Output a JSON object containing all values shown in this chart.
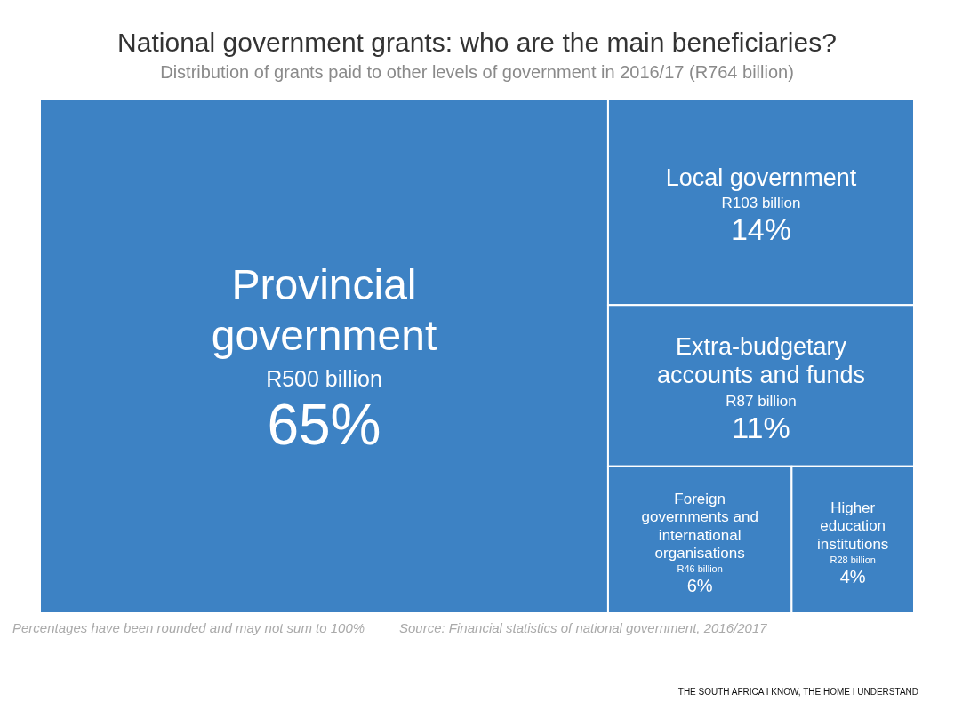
{
  "chart_data": {
    "type": "other",
    "title": "National government grants: who are the main beneficiaries?",
    "subtitle": "Distribution of grants paid to other levels of government in 2016/17 (R764 billion)",
    "categories": [
      "Provincial government",
      "Local government",
      "Extra-budgetary accounts and funds",
      "Foreign governments and international organisations",
      "Higher education institutions"
    ],
    "values": [
      65,
      14,
      11,
      6,
      4
    ],
    "value_labels": [
      "65%",
      "14%",
      "11%",
      "6%",
      "4%"
    ],
    "color": "#3d82c4",
    "annotations": [
      {
        "text": "R500 billion",
        "x": "Provincial government"
      },
      {
        "text": "R103 billion",
        "x": "Local government"
      },
      {
        "text": "R87 billion",
        "x": "Extra-budgetary accounts and funds"
      },
      {
        "text": "R46 billion",
        "x": "Foreign governments and international organisations"
      },
      {
        "text": "R28 billion",
        "x": "Higher education institutions"
      },
      "Percentages have been rounded and may not sum to 100%",
      "Source: Financial statistics of national government, 2016/2017",
      "THE SOUTH AFRICA I KNOW, THE HOME I UNDERSTAND"
    ]
  }
}
